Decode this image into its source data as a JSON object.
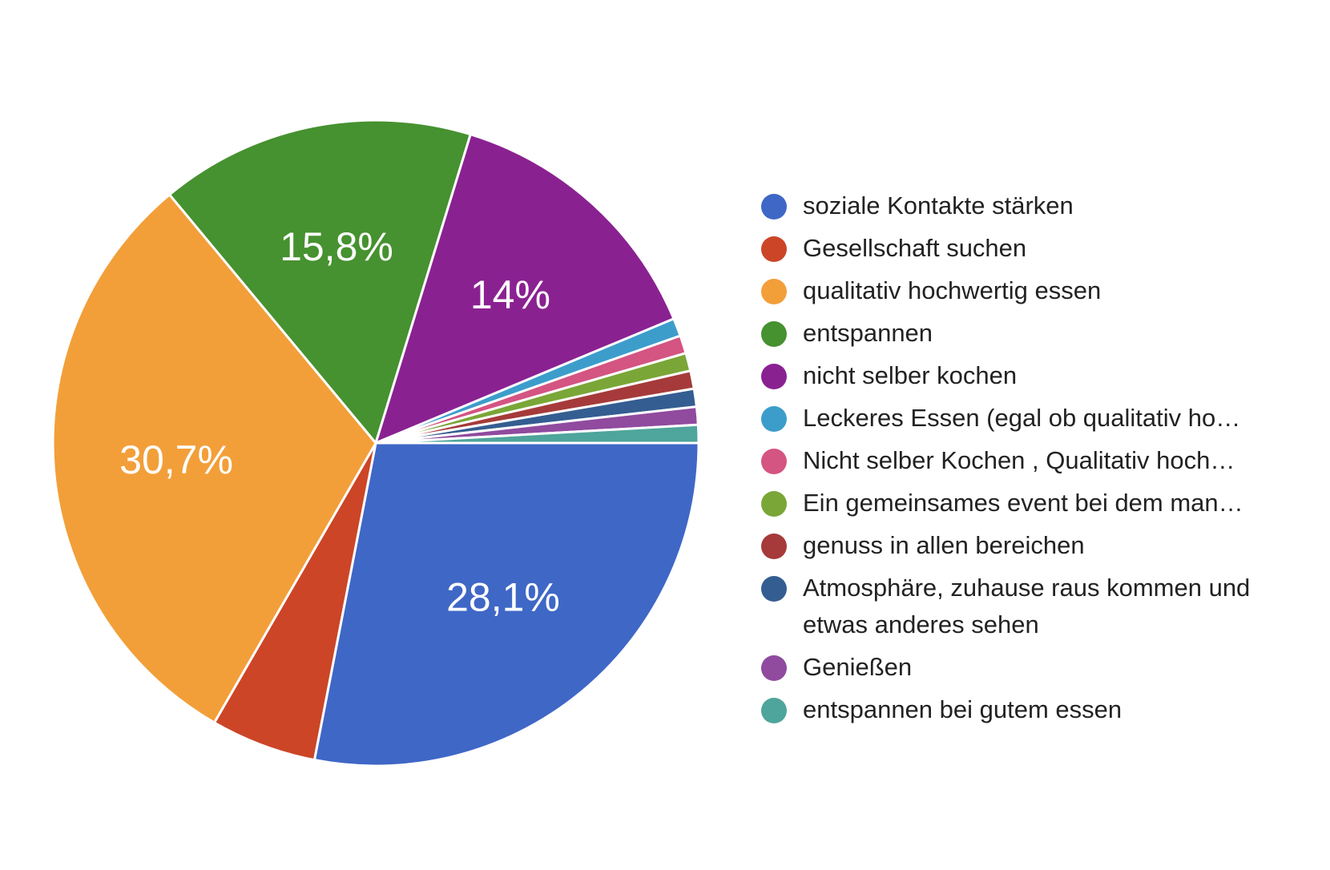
{
  "chart_data": {
    "type": "pie",
    "slices": [
      {
        "label": "soziale Kontakte stärken",
        "value": 28.1,
        "value_label": "28,1%",
        "color": "#3f67c6"
      },
      {
        "label": "Gesellschaft suchen",
        "value": 5.3,
        "value_label": "",
        "color": "#cc4527"
      },
      {
        "label": "qualitativ hochwertig essen",
        "value": 30.7,
        "value_label": "30,7%",
        "color": "#f29f3a"
      },
      {
        "label": "entspannen",
        "value": 15.8,
        "value_label": "15,8%",
        "color": "#469130"
      },
      {
        "label": "nicht selber kochen",
        "value": 14.0,
        "value_label": "14%",
        "color": "#8a2191"
      },
      {
        "label": "Leckeres Essen (egal ob qualitativ ho…",
        "value": 0.9,
        "value_label": "",
        "color": "#3c9dcb"
      },
      {
        "label": "Nicht selber Kochen , Qualitativ hoch…",
        "value": 0.9,
        "value_label": "",
        "color": "#d45482"
      },
      {
        "label": "Ein gemeinsames event bei dem man…",
        "value": 0.9,
        "value_label": "",
        "color": "#7aa637"
      },
      {
        "label": "genuss in allen bereichen",
        "value": 0.9,
        "value_label": "",
        "color": "#a63a3a"
      },
      {
        "label": "Atmosphäre, zuhause raus kommen und etwas anderes sehen",
        "value": 0.9,
        "value_label": "",
        "color": "#345d91"
      },
      {
        "label": "Genießen",
        "value": 0.9,
        "value_label": "",
        "color": "#904a9e"
      },
      {
        "label": "entspannen bei gutem essen",
        "value": 0.9,
        "value_label": "",
        "color": "#4ea59b"
      }
    ],
    "legend_position": "right"
  }
}
